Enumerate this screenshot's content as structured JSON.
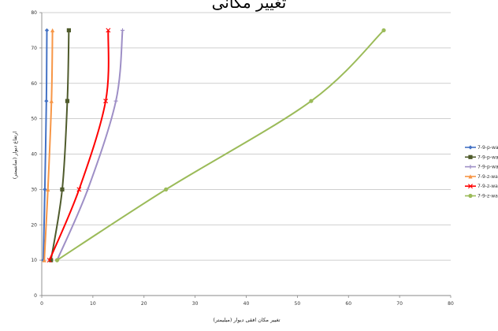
{
  "chart_data": {
    "type": "line",
    "title": "تغییر مکانی",
    "xlabel": "تغییر مکان افقی دیوار (میلیمتر)",
    "ylabel": "ارتفاع دیوار (سانتیمتر)",
    "xlim": [
      0,
      80
    ],
    "ylim": [
      0,
      80
    ],
    "xticks": [
      0,
      10,
      20,
      30,
      40,
      50,
      60,
      70,
      80
    ],
    "yticks": [
      0,
      10,
      20,
      30,
      40,
      50,
      60,
      70,
      80
    ],
    "grid": "horizontal",
    "legend_position": "right",
    "series": [
      {
        "name": "7-9-p-wa",
        "color": "#4472C4",
        "marker": "diamond",
        "points": [
          [
            0.3,
            10
          ],
          [
            0.6,
            30
          ],
          [
            0.9,
            55
          ],
          [
            1.0,
            75
          ]
        ]
      },
      {
        "name": "7-9-p-wa",
        "color": "#4F5B2C",
        "marker": "square",
        "points": [
          [
            1.8,
            10
          ],
          [
            4.0,
            30
          ],
          [
            5.0,
            55
          ],
          [
            5.3,
            75
          ]
        ]
      },
      {
        "name": "7-9-p-wa",
        "color": "#9E8FC6",
        "marker": "plus",
        "points": [
          [
            3.0,
            10
          ],
          [
            9.0,
            30
          ],
          [
            14.5,
            55
          ],
          [
            15.8,
            75
          ]
        ]
      },
      {
        "name": "7-9-z-wa",
        "color": "#F79646",
        "marker": "triangle",
        "points": [
          [
            0.5,
            10
          ],
          [
            1.2,
            30
          ],
          [
            1.9,
            55
          ],
          [
            2.1,
            75
          ]
        ]
      },
      {
        "name": "7-9-z-wa",
        "color": "#FF0000",
        "marker": "x",
        "points": [
          [
            1.5,
            10
          ],
          [
            7.3,
            30
          ],
          [
            12.5,
            55
          ],
          [
            13.0,
            75
          ]
        ]
      },
      {
        "name": "7-9-z-wa",
        "color": "#9BBB59",
        "marker": "circle",
        "points": [
          [
            3.0,
            10
          ],
          [
            24.3,
            30
          ],
          [
            52.7,
            55
          ],
          [
            66.9,
            75
          ]
        ]
      }
    ]
  }
}
